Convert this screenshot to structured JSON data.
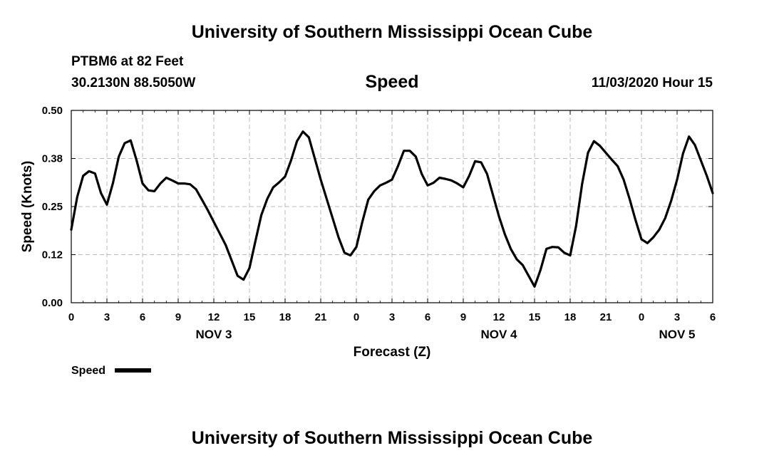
{
  "page": {
    "title_top": "University of Southern Mississippi Ocean Cube",
    "title_bottom": "University of Southern Mississippi Ocean Cube",
    "station": "PTBM6 at 82 Feet",
    "coords": "30.2130N 88.5050W",
    "variable": "Speed",
    "datetime": "11/03/2020 Hour 15"
  },
  "colors": {
    "line": "#000000",
    "grid": "#bbbbbb"
  },
  "chart_data": {
    "type": "line",
    "title": "Speed",
    "xlabel": "Forecast (Z)",
    "ylabel": "Speed (Knots)",
    "xlim": [
      0,
      54
    ],
    "ylim": [
      0,
      0.5
    ],
    "yticks": [
      0.0,
      0.125,
      0.25,
      0.375,
      0.5
    ],
    "ytick_labels": [
      "0.00",
      "0.12",
      "0.25",
      "0.38",
      "0.50"
    ],
    "xticks": [
      0,
      3,
      6,
      9,
      12,
      15,
      18,
      21,
      24,
      27,
      30,
      33,
      36,
      39,
      42,
      45,
      48,
      51,
      54
    ],
    "xtick_labels": [
      "0",
      "3",
      "6",
      "9",
      "12",
      "15",
      "18",
      "21",
      "0",
      "3",
      "6",
      "9",
      "12",
      "15",
      "18",
      "21",
      "0",
      "3",
      "6"
    ],
    "day_labels": [
      {
        "label": "NOV 3",
        "x": 12
      },
      {
        "label": "NOV 4",
        "x": 36
      },
      {
        "label": "NOV 5",
        "x": 51
      }
    ],
    "legend": {
      "label": "Speed",
      "position": "bottom-left"
    },
    "series": [
      {
        "name": "Speed",
        "x": [
          0,
          0.5,
          1,
          1.5,
          2,
          2.5,
          3,
          3.5,
          4,
          4.5,
          5,
          5.5,
          6,
          6.5,
          7,
          7.5,
          8,
          8.5,
          9,
          9.5,
          10,
          10.5,
          11,
          11.5,
          12,
          12.5,
          13,
          13.5,
          14,
          14.5,
          15,
          15.5,
          16,
          16.5,
          17,
          17.5,
          18,
          18.5,
          19,
          19.5,
          20,
          20.5,
          21,
          21.5,
          22,
          22.5,
          23,
          23.5,
          24,
          24.5,
          25,
          25.5,
          26,
          26.5,
          27,
          27.5,
          28,
          28.5,
          29,
          29.5,
          30,
          30.5,
          31,
          31.5,
          32,
          32.5,
          33,
          33.5,
          34,
          34.5,
          35,
          35.5,
          36,
          36.5,
          37,
          37.5,
          38,
          38.5,
          39,
          39.5,
          40,
          40.5,
          41,
          41.5,
          42,
          42.5,
          43,
          43.5,
          44,
          44.5,
          45,
          45.5,
          46,
          46.5,
          47,
          47.5,
          48,
          48.5,
          49,
          49.5,
          50,
          50.5,
          51,
          51.5,
          52,
          52.5,
          53,
          53.5,
          54
        ],
        "values": [
          0.19,
          0.275,
          0.33,
          0.342,
          0.336,
          0.285,
          0.255,
          0.31,
          0.38,
          0.415,
          0.422,
          0.37,
          0.31,
          0.292,
          0.29,
          0.31,
          0.325,
          0.318,
          0.31,
          0.31,
          0.308,
          0.295,
          0.268,
          0.24,
          0.21,
          0.18,
          0.15,
          0.11,
          0.07,
          0.06,
          0.09,
          0.16,
          0.228,
          0.27,
          0.3,
          0.313,
          0.328,
          0.37,
          0.42,
          0.445,
          0.43,
          0.375,
          0.32,
          0.27,
          0.22,
          0.17,
          0.13,
          0.123,
          0.145,
          0.21,
          0.268,
          0.29,
          0.305,
          0.312,
          0.32,
          0.355,
          0.395,
          0.395,
          0.38,
          0.335,
          0.305,
          0.312,
          0.325,
          0.322,
          0.318,
          0.31,
          0.3,
          0.33,
          0.368,
          0.365,
          0.335,
          0.28,
          0.225,
          0.178,
          0.14,
          0.113,
          0.098,
          0.07,
          0.042,
          0.085,
          0.14,
          0.145,
          0.144,
          0.13,
          0.123,
          0.2,
          0.308,
          0.39,
          0.42,
          0.408,
          0.39,
          0.372,
          0.355,
          0.32,
          0.27,
          0.215,
          0.165,
          0.155,
          0.17,
          0.19,
          0.22,
          0.265,
          0.32,
          0.388,
          0.432,
          0.41,
          0.37,
          0.33,
          0.285
        ]
      }
    ]
  }
}
